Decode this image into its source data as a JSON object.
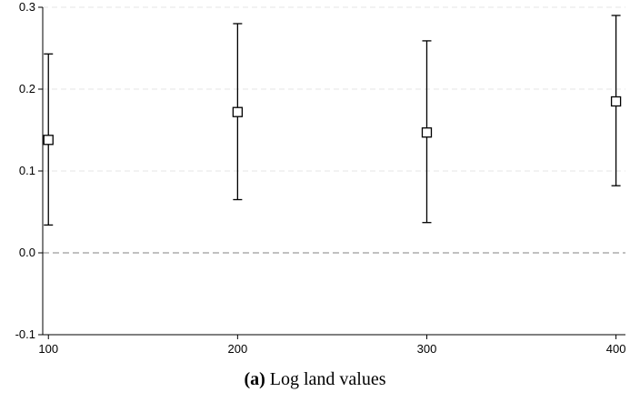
{
  "caption": {
    "label": "(a)",
    "text": "Log land values"
  },
  "chart_data": {
    "type": "scatter",
    "title": "",
    "xlabel": "",
    "ylabel": "",
    "x": [
      100,
      200,
      300,
      400
    ],
    "y": [
      0.138,
      0.172,
      0.147,
      0.185
    ],
    "ci_lower": [
      0.034,
      0.065,
      0.037,
      0.082
    ],
    "ci_upper": [
      0.243,
      0.28,
      0.259,
      0.29
    ],
    "marker": "hollow-square",
    "xlim": [
      97,
      405
    ],
    "ylim": [
      -0.1,
      0.3
    ],
    "xticks": [
      "100",
      "200",
      "300",
      "400"
    ],
    "yticks": [
      "-0.1",
      "0.0",
      "0.1",
      "0.2",
      "0.3"
    ],
    "reference_line": 0.0,
    "grid": "horizontal dashed",
    "colors": {
      "marker": "#000000",
      "grid": "#e6e6e6",
      "reference": "#9a9a9a"
    }
  }
}
